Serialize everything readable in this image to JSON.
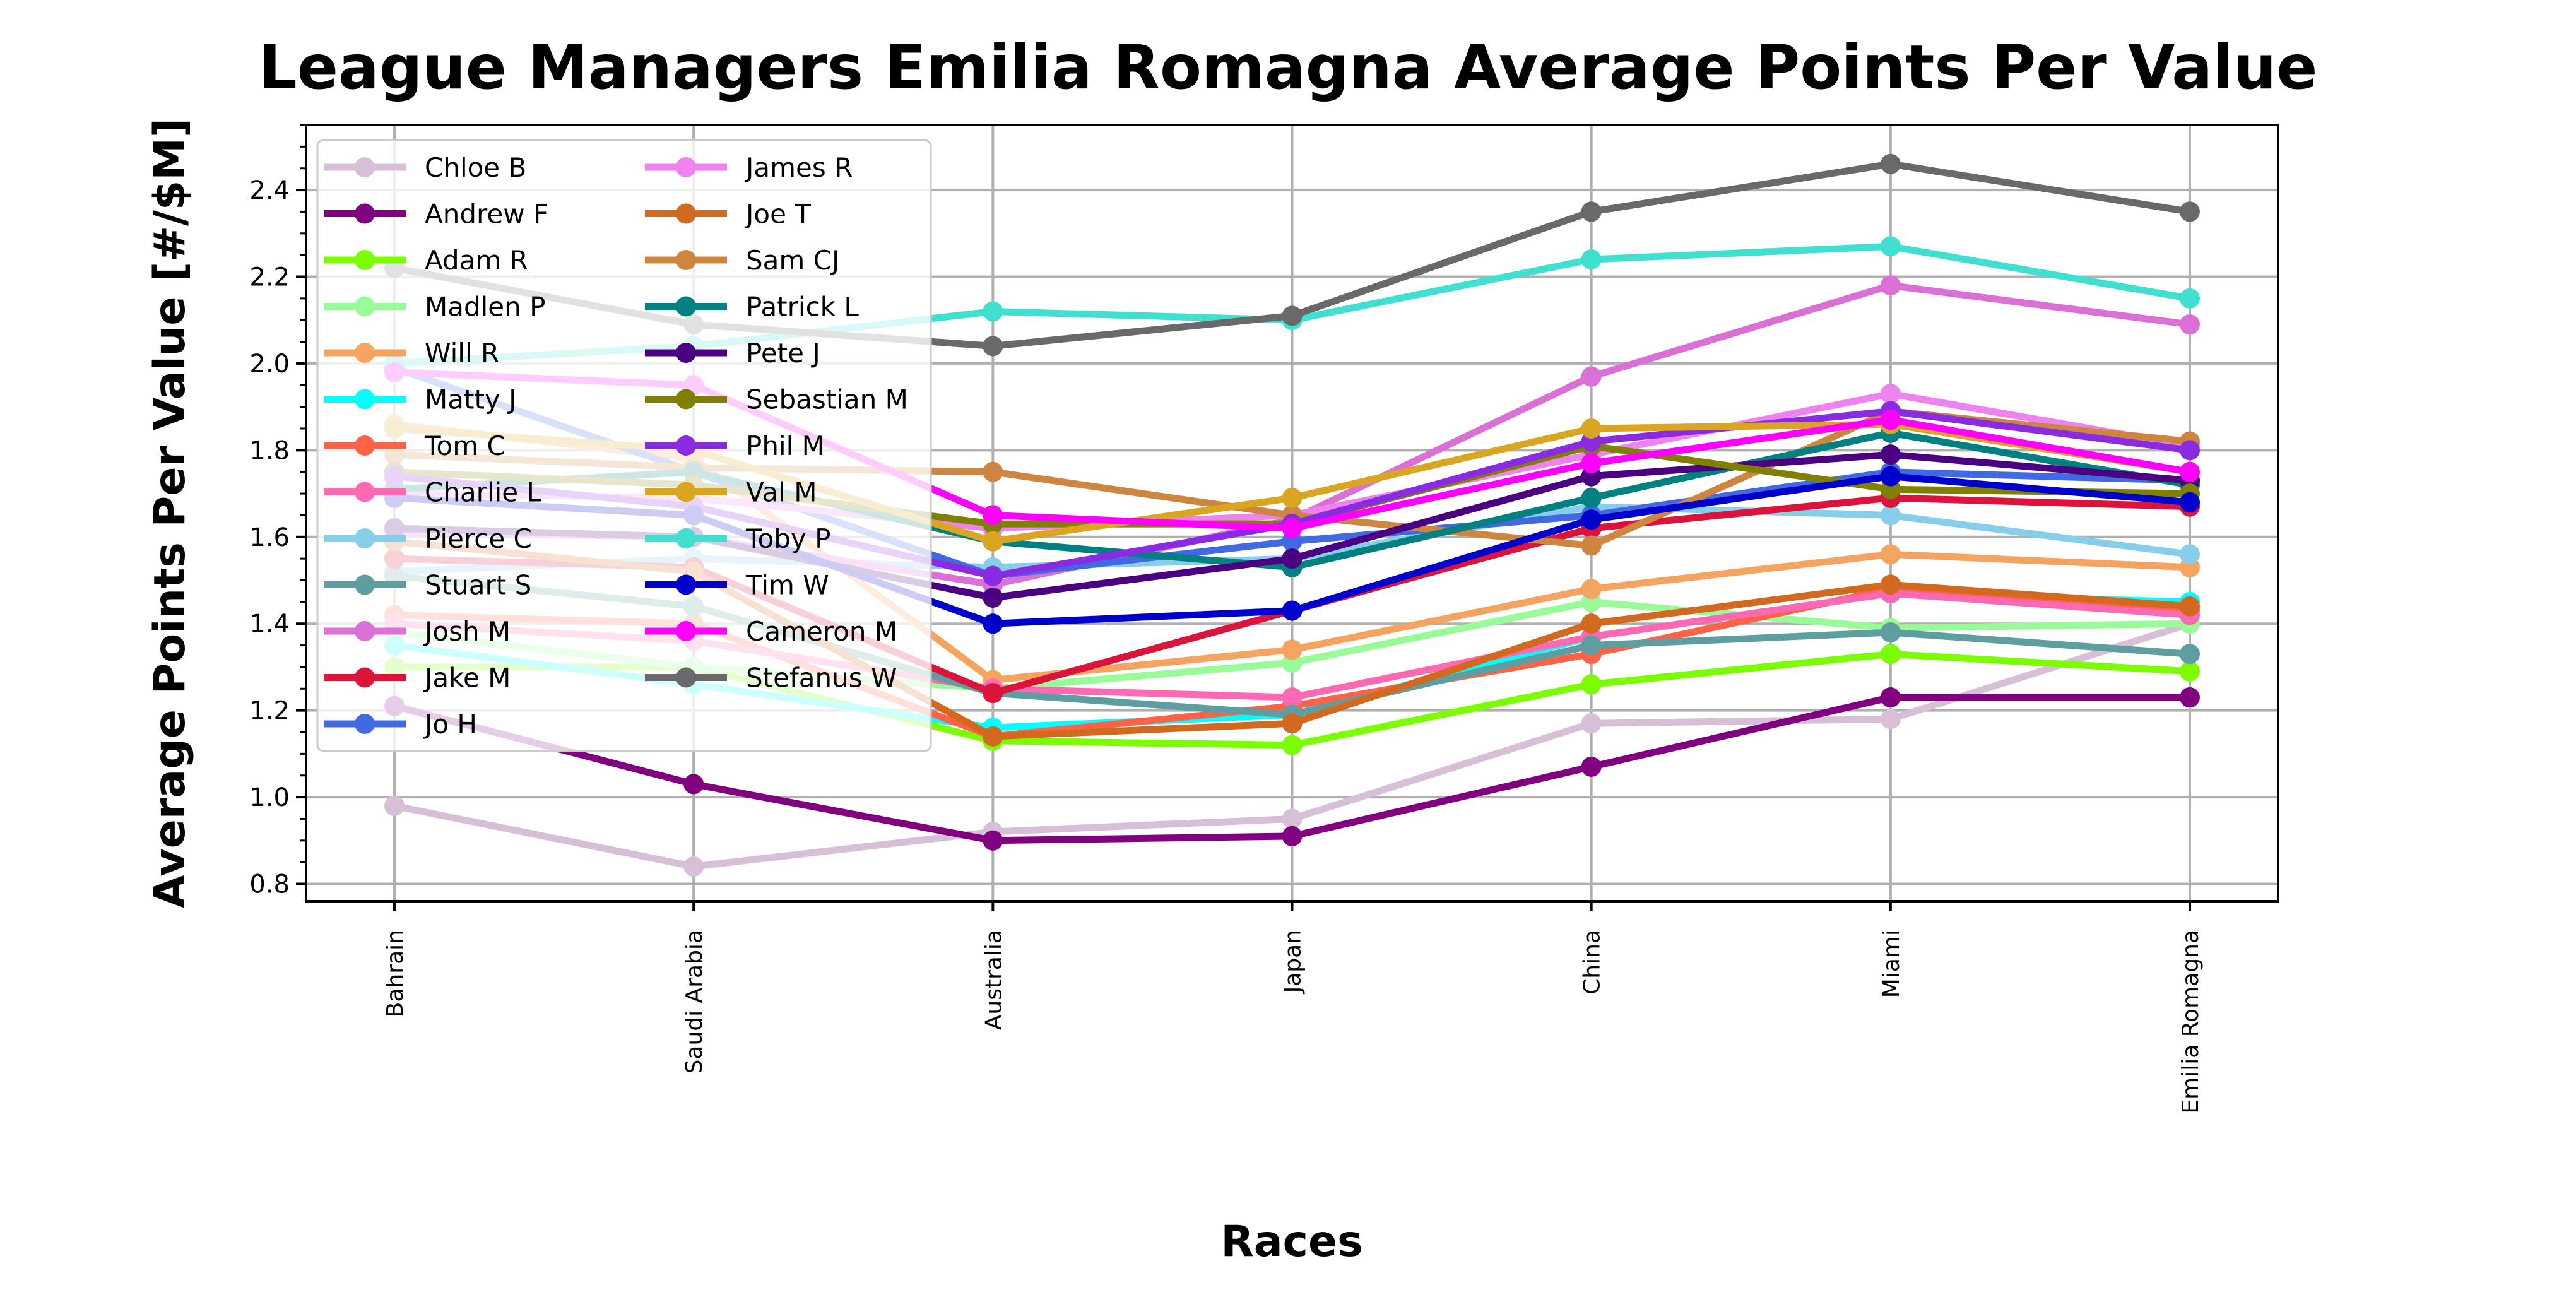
{
  "chart_data": {
    "type": "line",
    "title": "League Managers Emilia Romagna Average Points Per Value",
    "xlabel": "Races",
    "ylabel": "Average Points Per Value [#/$M]",
    "categories": [
      "Bahrain",
      "Saudi Arabia",
      "Australia",
      "Japan",
      "China",
      "Miami",
      "Emilia Romagna"
    ],
    "ylim": [
      0.76,
      2.55
    ],
    "yticks": [
      0.8,
      1.0,
      1.2,
      1.4,
      1.6,
      1.8,
      2.0,
      2.2,
      2.4
    ],
    "ytick_labels": [
      "0.8",
      "1.0",
      "1.2",
      "1.4",
      "1.6",
      "1.8",
      "2.0",
      "2.2",
      "2.4"
    ],
    "grid": true,
    "legend_position": "top-left",
    "legend_columns": 2,
    "series": [
      {
        "name": "Chloe B",
        "color": "#d8bfd8",
        "values": [
          0.98,
          0.84,
          0.92,
          0.95,
          1.17,
          1.18,
          1.4
        ]
      },
      {
        "name": "Andrew F",
        "color": "#800080",
        "values": [
          1.21,
          1.03,
          0.9,
          0.91,
          1.07,
          1.23,
          1.23
        ]
      },
      {
        "name": "Adam R",
        "color": "#7cfc00",
        "values": [
          1.3,
          1.3,
          1.13,
          1.12,
          1.26,
          1.33,
          1.29
        ]
      },
      {
        "name": "Madlen P",
        "color": "#98fb98",
        "values": [
          1.38,
          1.3,
          1.25,
          1.31,
          1.45,
          1.39,
          1.4
        ]
      },
      {
        "name": "Will R",
        "color": "#f4a460",
        "values": [
          1.86,
          1.78,
          1.27,
          1.34,
          1.48,
          1.56,
          1.53
        ]
      },
      {
        "name": "Matty J",
        "color": "#00ffff",
        "values": [
          1.35,
          1.26,
          1.16,
          1.19,
          1.37,
          1.47,
          1.45
        ]
      },
      {
        "name": "Tom C",
        "color": "#ff6347",
        "values": [
          1.42,
          1.4,
          1.14,
          1.21,
          1.33,
          1.48,
          1.43
        ]
      },
      {
        "name": "Charlie L",
        "color": "#ff69b4",
        "values": [
          1.4,
          1.36,
          1.25,
          1.23,
          1.37,
          1.47,
          1.42
        ]
      },
      {
        "name": "Pierce C",
        "color": "#87ceeb",
        "values": [
          1.52,
          1.55,
          1.53,
          1.55,
          1.67,
          1.65,
          1.56
        ]
      },
      {
        "name": "Stuart S",
        "color": "#5f9ea0",
        "values": [
          1.51,
          1.44,
          1.24,
          1.19,
          1.35,
          1.38,
          1.33
        ]
      },
      {
        "name": "Josh M",
        "color": "#da70d6",
        "values": [
          1.61,
          1.6,
          1.49,
          1.64,
          1.97,
          2.18,
          2.09
        ]
      },
      {
        "name": "Jake M",
        "color": "#dc143c",
        "values": [
          1.55,
          1.53,
          1.24,
          1.43,
          1.62,
          1.69,
          1.67
        ]
      },
      {
        "name": "Jo H",
        "color": "#4169e1",
        "values": [
          1.99,
          1.75,
          1.51,
          1.59,
          1.65,
          1.75,
          1.73
        ]
      },
      {
        "name": "James R",
        "color": "#ee82ee",
        "values": [
          1.7,
          1.69,
          1.62,
          1.65,
          1.79,
          1.93,
          1.81
        ]
      },
      {
        "name": "Joe T",
        "color": "#d2691e",
        "values": [
          1.59,
          1.52,
          1.14,
          1.17,
          1.4,
          1.49,
          1.44
        ]
      },
      {
        "name": "Sam CJ",
        "color": "#cd853f",
        "values": [
          1.79,
          1.76,
          1.75,
          1.65,
          1.58,
          1.89,
          1.82
        ]
      },
      {
        "name": "Patrick L",
        "color": "#008080",
        "values": [
          1.71,
          1.75,
          1.59,
          1.53,
          1.69,
          1.84,
          1.72
        ]
      },
      {
        "name": "Pete J",
        "color": "#4b0082",
        "values": [
          1.62,
          1.6,
          1.46,
          1.55,
          1.74,
          1.79,
          1.73
        ]
      },
      {
        "name": "Sebastian M",
        "color": "#808000",
        "values": [
          1.75,
          1.72,
          1.63,
          1.63,
          1.81,
          1.71,
          1.7
        ]
      },
      {
        "name": "Phil M",
        "color": "#8a2be2",
        "values": [
          1.74,
          1.67,
          1.51,
          1.63,
          1.82,
          1.89,
          1.8
        ]
      },
      {
        "name": "Val M",
        "color": "#daa520",
        "values": [
          1.85,
          1.8,
          1.59,
          1.69,
          1.85,
          1.86,
          1.75
        ]
      },
      {
        "name": "Toby P",
        "color": "#40e0d0",
        "values": [
          2.0,
          2.04,
          2.12,
          2.1,
          2.24,
          2.27,
          2.15
        ]
      },
      {
        "name": "Tim W",
        "color": "#0000cd",
        "values": [
          1.69,
          1.65,
          1.4,
          1.43,
          1.64,
          1.74,
          1.68
        ]
      },
      {
        "name": "Cameron M",
        "color": "#ff00ff",
        "values": [
          1.98,
          1.95,
          1.65,
          1.62,
          1.77,
          1.87,
          1.75
        ]
      },
      {
        "name": "Stefanus W",
        "color": "#696969",
        "values": [
          2.22,
          2.09,
          2.04,
          2.11,
          2.35,
          2.46,
          2.35
        ]
      }
    ]
  }
}
